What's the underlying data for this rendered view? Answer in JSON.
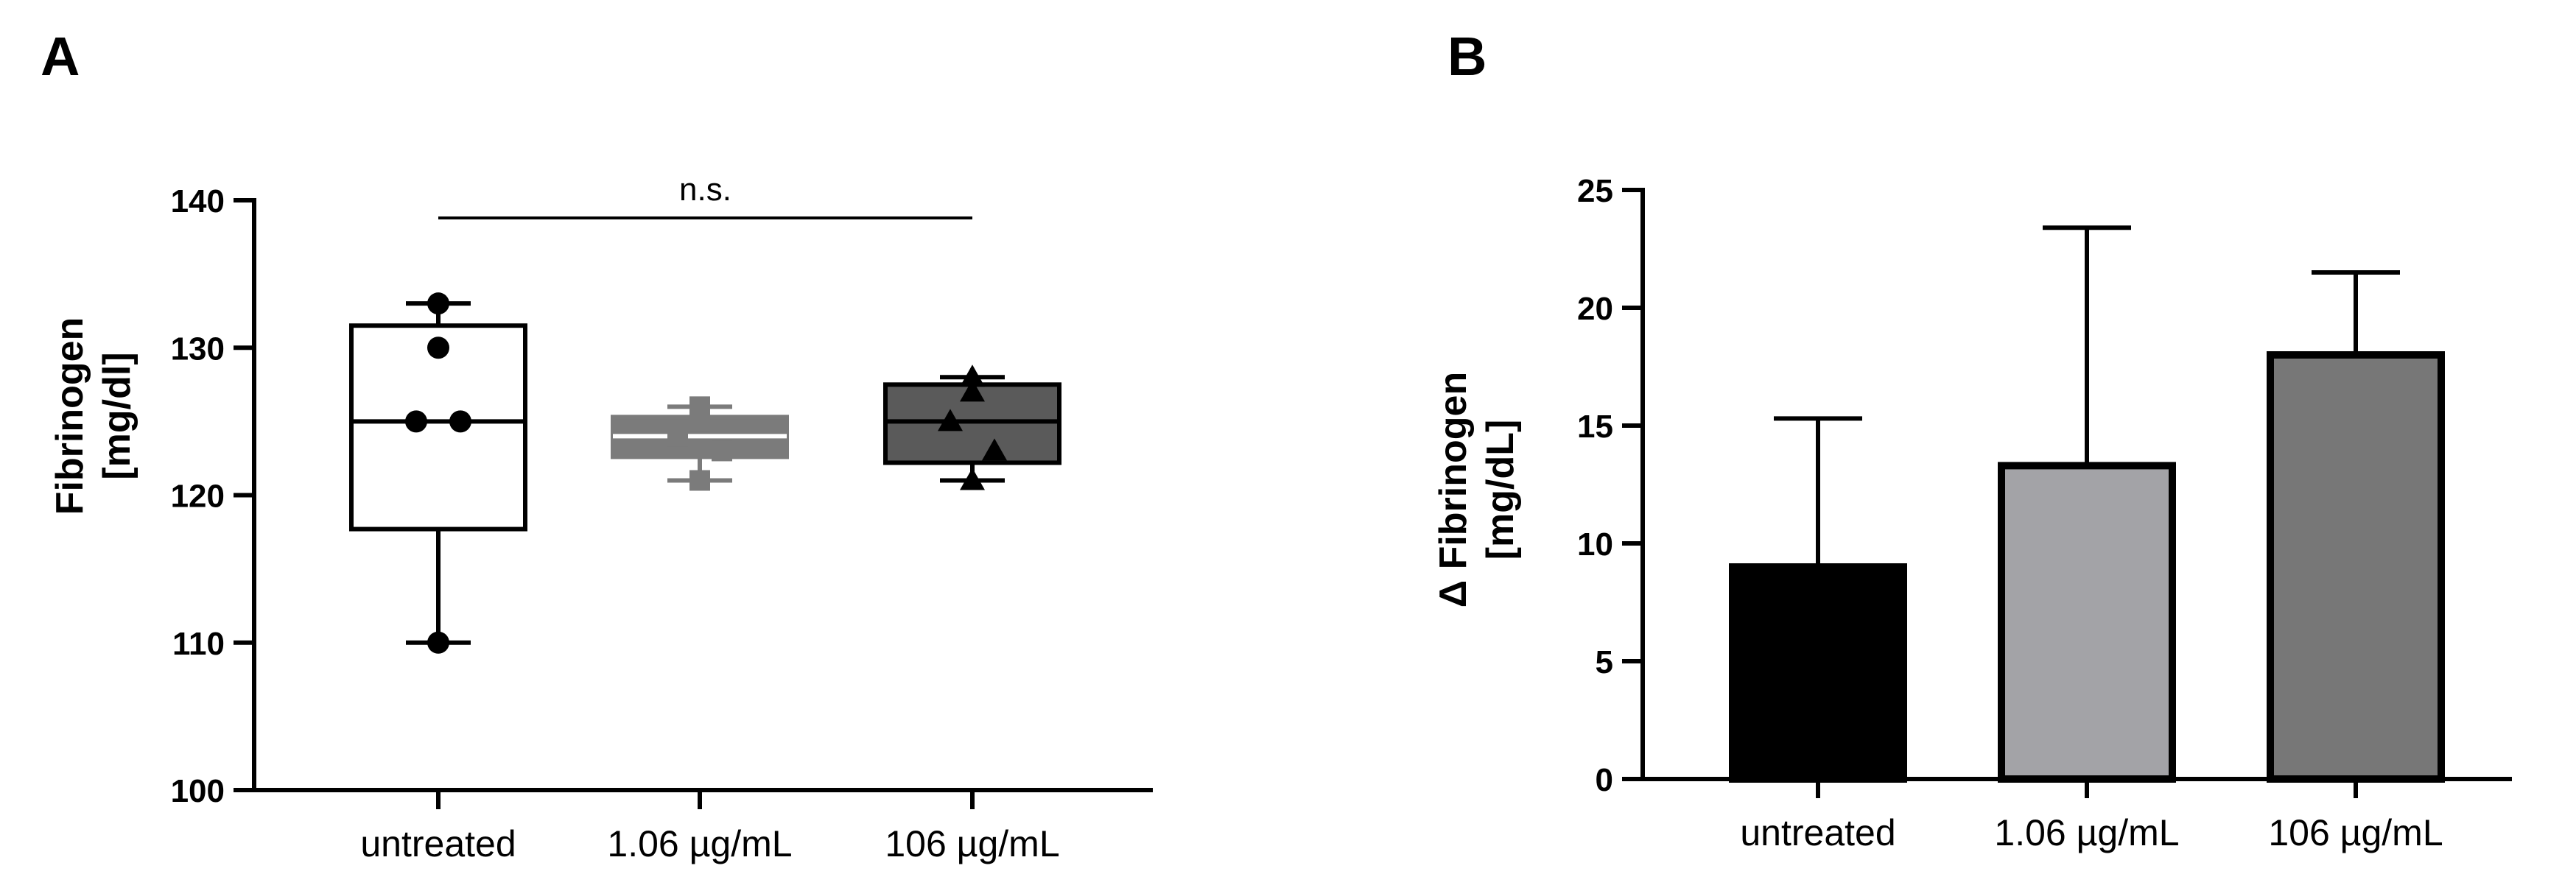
{
  "chart_data": [
    {
      "panel": "A",
      "type": "box",
      "ylabel_lines": [
        "Fibrinogen",
        "[mg/dl]"
      ],
      "xlabel": "",
      "ylim": [
        100,
        140
      ],
      "yticks": [
        100,
        110,
        120,
        130,
        140
      ],
      "categories": [
        "untreated",
        "1.06 µg/mL",
        "106 µg/mL"
      ],
      "boxes": [
        {
          "category": "untreated",
          "min": 110,
          "q1": 117.7,
          "median": 125,
          "q3": 131.5,
          "max": 133,
          "points": [
            133,
            130,
            125,
            125,
            110
          ],
          "marker": "circle",
          "fill": "#ffffff",
          "stroke": "#000000"
        },
        {
          "category": "1.06 µg/mL",
          "min": 121,
          "q1": 122.6,
          "median": 124,
          "q3": 125.3,
          "max": 126,
          "points": [
            126,
            125,
            124,
            123,
            121
          ],
          "marker": "square",
          "fill": "#7b7b7b",
          "stroke": "#7b7b7b"
        },
        {
          "category": "106 µg/mL",
          "min": 121,
          "q1": 122.2,
          "median": 125,
          "q3": 127.5,
          "max": 128,
          "points": [
            128,
            127,
            125,
            123,
            121
          ],
          "marker": "triangle",
          "fill": "#5a5a5a",
          "stroke": "#000000"
        }
      ],
      "annotation": {
        "text": "n.s.",
        "from": "untreated",
        "to": "106 µg/mL",
        "y": 138.8
      },
      "grid": false,
      "legend": "none"
    },
    {
      "panel": "B",
      "type": "bar",
      "ylabel_lines": [
        "Δ Fibrinogen",
        "[mg/dL]"
      ],
      "xlabel": "",
      "ylim": [
        0,
        25
      ],
      "yticks": [
        0,
        5,
        10,
        15,
        20,
        25
      ],
      "categories": [
        "untreated",
        "1.06 µg/mL",
        "106 µg/mL"
      ],
      "values": [
        9.0,
        13.3,
        18.0
      ],
      "error_upper": [
        15.3,
        23.4,
        21.5
      ],
      "colors": [
        "#000000",
        "#a3a3a7",
        "#777777"
      ],
      "grid": false,
      "legend": "none"
    }
  ]
}
